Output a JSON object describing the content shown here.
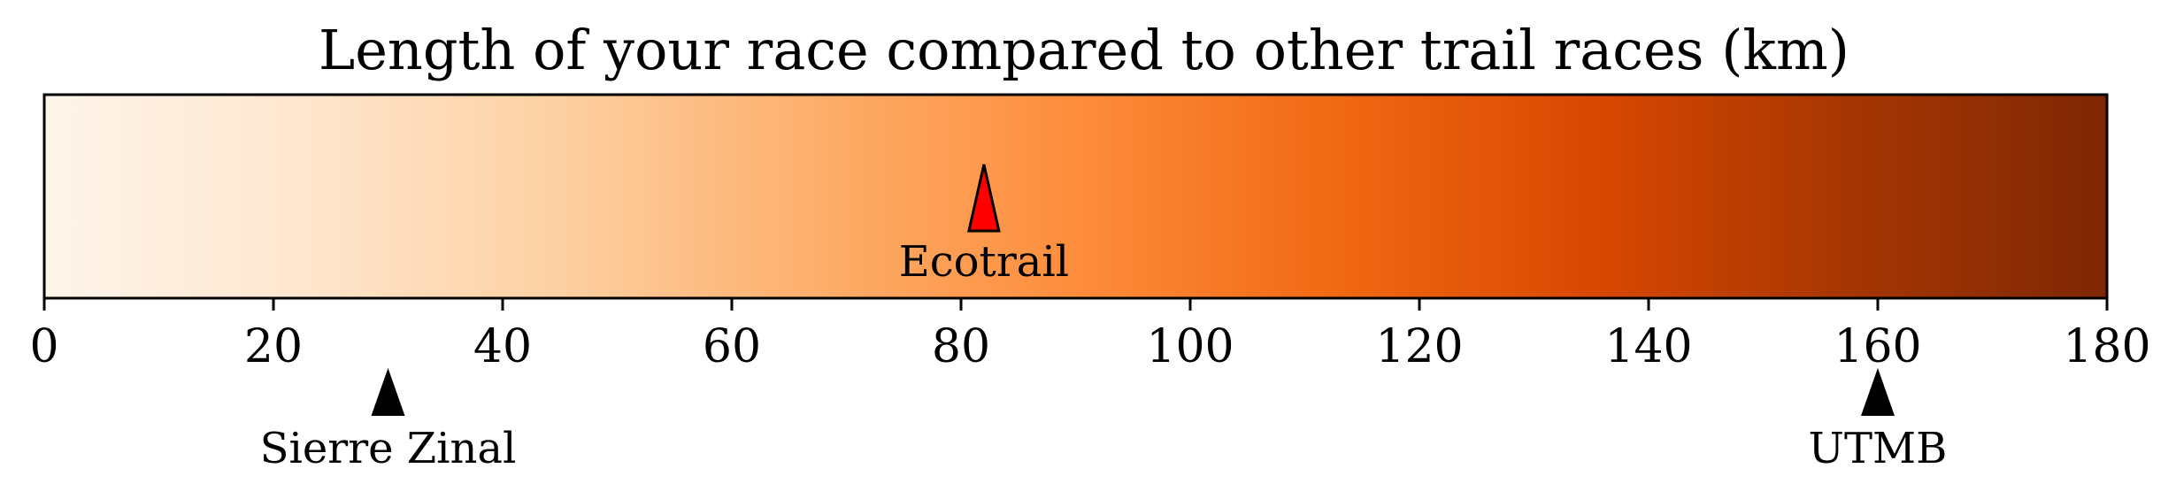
{
  "chart_data": {
    "type": "colorbar",
    "title": "Length of your race compared to other trail races (km)",
    "xlim": [
      0,
      180
    ],
    "ticks": [
      0,
      20,
      40,
      60,
      80,
      100,
      120,
      140,
      160,
      180
    ],
    "colormap": "Oranges",
    "gradient_colors": [
      "#fff5eb",
      "#fee6ce",
      "#fdd0a2",
      "#fdae6b",
      "#fd8d3c",
      "#f16913",
      "#d94801",
      "#a63603",
      "#7f2704"
    ],
    "your_race": {
      "label": "Ecotrail",
      "value": 82,
      "color": "#ff0000"
    },
    "reference_races": [
      {
        "label": "Sierre Zinal",
        "value": 30,
        "color": "#000000"
      },
      {
        "label": "UTMB",
        "value": 160,
        "color": "#000000"
      }
    ]
  }
}
